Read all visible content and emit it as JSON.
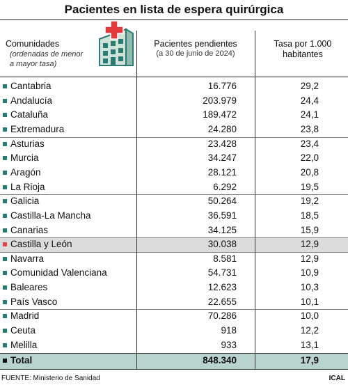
{
  "header": {
    "title": "Pacientes en lista de espera quirúrgica"
  },
  "table": {
    "columns": [
      {
        "title": "Comunidades",
        "subtitle": "(ordenadas de menor a mayor tasa)"
      },
      {
        "title": "Pacientes pendientes",
        "subtitle": "(a 30 de junio de 2024)"
      },
      {
        "title": "Tasa por 1.000 habitantes"
      }
    ],
    "rows": [
      [
        "Cantabria",
        "16.776",
        "29,2"
      ],
      [
        "Andalucía",
        "203.979",
        "24,4"
      ],
      [
        "Cataluña",
        "189.472",
        "24,1"
      ],
      [
        "Extremadura",
        "24.280",
        "23,8"
      ],
      [
        "Asturias",
        "23.428",
        "23,4"
      ],
      [
        "Murcia",
        "34.247",
        "22,0"
      ],
      [
        "Aragón",
        "28.121",
        "20,8"
      ],
      [
        "La Rioja",
        "6.292",
        "19,5"
      ],
      [
        "Galicia",
        "50.264",
        "19,2"
      ],
      [
        "Castilla-La Mancha",
        "36.591",
        "18,5"
      ],
      [
        "Canarias",
        "34.125",
        "15,9"
      ],
      [
        "Castilla y León",
        "30.038",
        "12,9"
      ],
      [
        "Navarra",
        "8.581",
        "12,9"
      ],
      [
        "Comunidad Valenciana",
        "54.731",
        "10,9"
      ],
      [
        "Baleares",
        "12.623",
        "10,3"
      ],
      [
        "País Vasco",
        "22.655",
        "10,1"
      ],
      [
        "Madrid",
        "70.286",
        "10,0"
      ],
      [
        "Ceuta",
        "918",
        "12,2"
      ],
      [
        "Melilla",
        "933",
        "13,1"
      ]
    ],
    "total": [
      "Total",
      "848.340",
      "17,9"
    ]
  },
  "footer": {
    "source": "FUENTE: Ministerio de Sanidad",
    "credit": "ICAL"
  }
}
